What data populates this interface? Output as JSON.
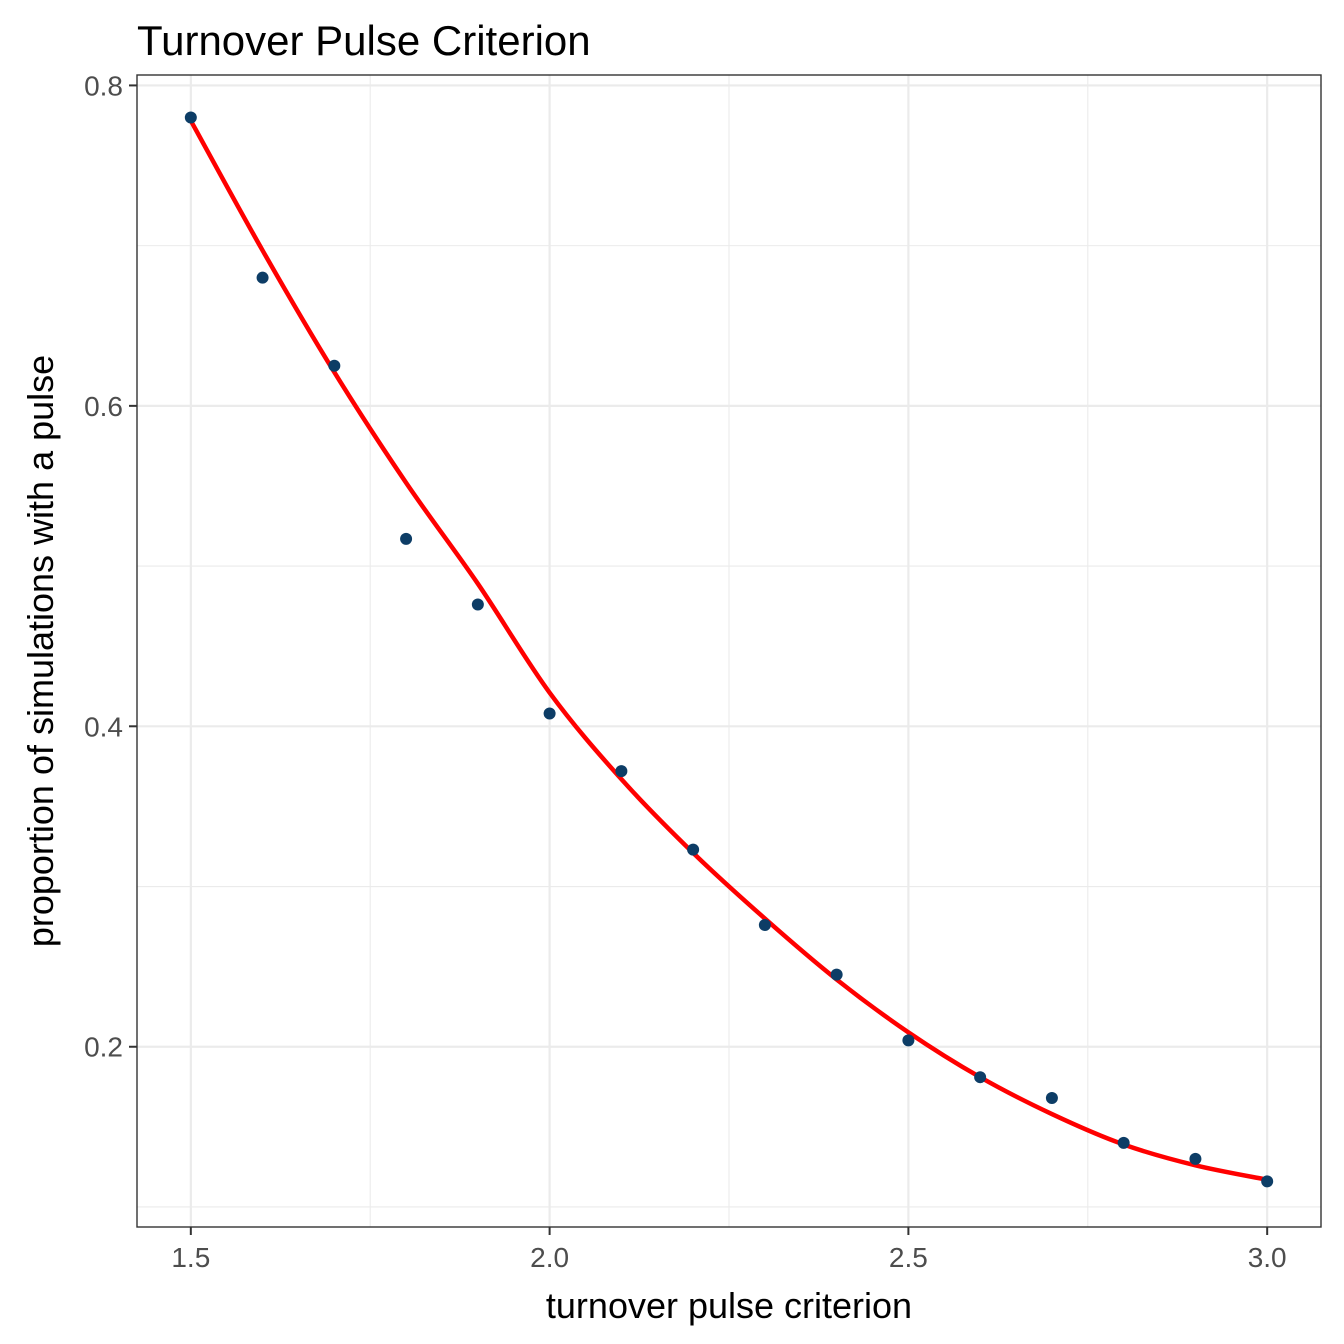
{
  "chart_data": {
    "type": "scatter",
    "title": "Turnover Pulse Criterion",
    "xlabel": "turnover pulse criterion",
    "ylabel": "proportion of simulations with a pulse",
    "xlim": [
      1.425,
      3.075
    ],
    "ylim": [
      0.0875,
      0.8065
    ],
    "x_ticks": [
      1.5,
      2.0,
      2.5,
      3.0
    ],
    "x_tick_labels": [
      "1.5",
      "2.0",
      "2.5",
      "3.0"
    ],
    "y_ticks": [
      0.2,
      0.4,
      0.6,
      0.8
    ],
    "y_tick_labels": [
      "0.2",
      "0.4",
      "0.6",
      "0.8"
    ],
    "grid": true,
    "legend": "none",
    "series": [
      {
        "kind": "points",
        "color": "#0d3d66",
        "x": [
          1.5,
          1.6,
          1.7,
          1.8,
          1.9,
          2.0,
          2.1,
          2.2,
          2.3,
          2.4,
          2.5,
          2.6,
          2.7,
          2.8,
          2.9,
          3.0
        ],
        "y": [
          0.78,
          0.68,
          0.625,
          0.517,
          0.476,
          0.408,
          0.372,
          0.323,
          0.276,
          0.245,
          0.204,
          0.181,
          0.168,
          0.14,
          0.13,
          0.116
        ]
      },
      {
        "kind": "smooth-fit",
        "color": "#ff0000",
        "x": [
          1.5,
          1.6,
          1.7,
          1.8,
          1.9,
          2.0,
          2.1,
          2.2,
          2.3,
          2.4,
          2.5,
          2.6,
          2.7,
          2.8,
          2.9,
          3.0
        ],
        "y": [
          0.778,
          0.697,
          0.621,
          0.552,
          0.489,
          0.421,
          0.367,
          0.321,
          0.28,
          0.242,
          0.209,
          0.181,
          0.158,
          0.139,
          0.126,
          0.117
        ]
      }
    ]
  }
}
